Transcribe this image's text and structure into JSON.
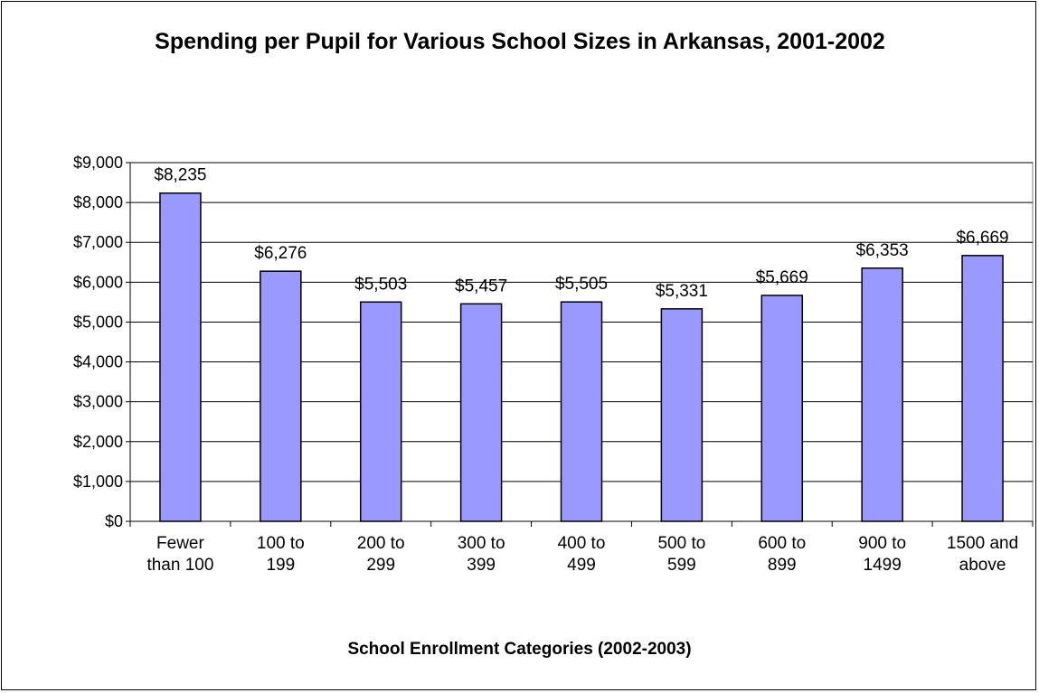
{
  "chart_data": {
    "type": "bar",
    "title": "Spending per Pupil for Various School Sizes in Arkansas, 2001-2002",
    "xlabel": "School Enrollment Categories (2002-2003)",
    "ylabel": "",
    "categories": [
      [
        "Fewer",
        "than 100"
      ],
      [
        "100 to",
        "199"
      ],
      [
        "200 to",
        "299"
      ],
      [
        "300 to",
        "399"
      ],
      [
        "400 to",
        "499"
      ],
      [
        "500 to",
        "599"
      ],
      [
        "600 to",
        "899"
      ],
      [
        "900 to",
        "1499"
      ],
      [
        "1500 and",
        "above"
      ]
    ],
    "values": [
      8235,
      6276,
      5503,
      5457,
      5505,
      5331,
      5669,
      6353,
      6669
    ],
    "data_labels": [
      "$8,235",
      "$6,276",
      "$5,503",
      "$5,457",
      "$5,505",
      "$5,331",
      "$5,669",
      "$6,353",
      "$6,669"
    ],
    "ylim": [
      0,
      9000
    ],
    "yticks": [
      0,
      1000,
      2000,
      3000,
      4000,
      5000,
      6000,
      7000,
      8000,
      9000
    ],
    "ytick_labels": [
      "$0",
      "$1,000",
      "$2,000",
      "$3,000",
      "$4,000",
      "$5,000",
      "$6,000",
      "$7,000",
      "$8,000",
      "$9,000"
    ],
    "grid": true,
    "legend": "none",
    "bar_color": "#9999ff",
    "bar_edge_color": "#000000"
  }
}
